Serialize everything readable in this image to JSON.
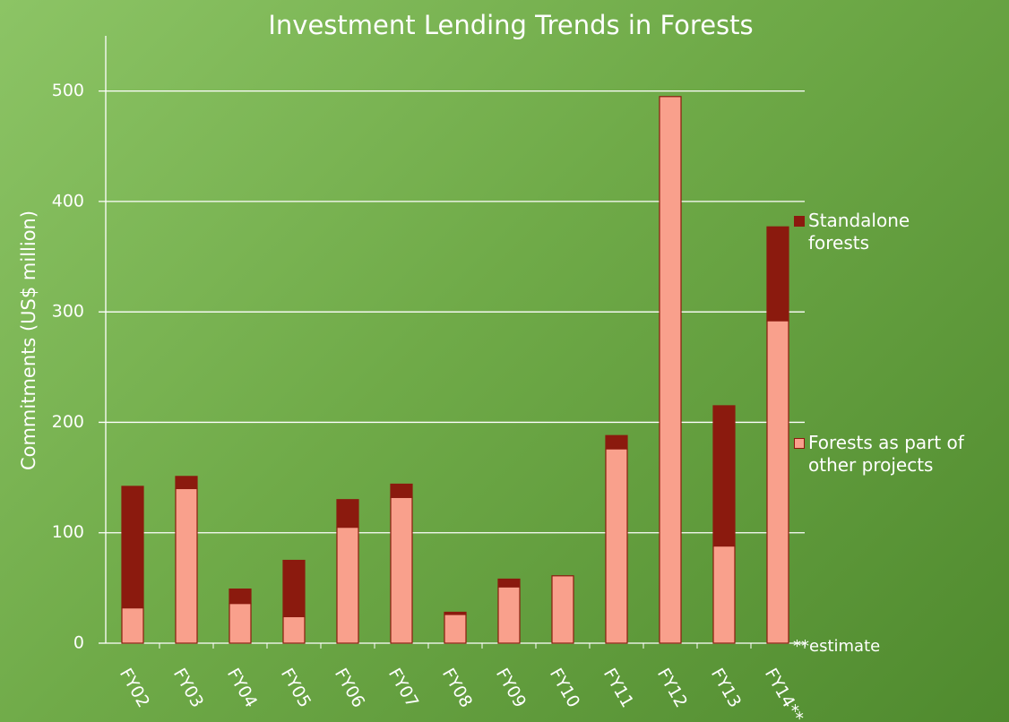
{
  "chart_data": {
    "type": "stacked_bar",
    "title": "Investment Lending Trends in Forests",
    "y_label": "Commitments (US$ million)",
    "categories": [
      "FY02",
      "FY03",
      "FY04",
      "FY05",
      "FY06",
      "FY07",
      "FY08",
      "FY09",
      "FY10",
      "FY11",
      "FY12",
      "FY13",
      "FY14**"
    ],
    "series": [
      {
        "name": "Forests as part of other projects",
        "color": "#f9a08c",
        "values": [
          32,
          140,
          36,
          24,
          105,
          132,
          26,
          51,
          61,
          176,
          495,
          88,
          292
        ]
      },
      {
        "name": "Standalone forests",
        "color": "#8b1a0e",
        "values": [
          110,
          11,
          13,
          51,
          25,
          12,
          2,
          7,
          0,
          12,
          0,
          127,
          85
        ]
      }
    ],
    "ylim": [
      0,
      550
    ],
    "yticks": [
      0,
      100,
      200,
      300,
      400,
      500
    ],
    "grid": true,
    "annotation": "**estimate"
  }
}
